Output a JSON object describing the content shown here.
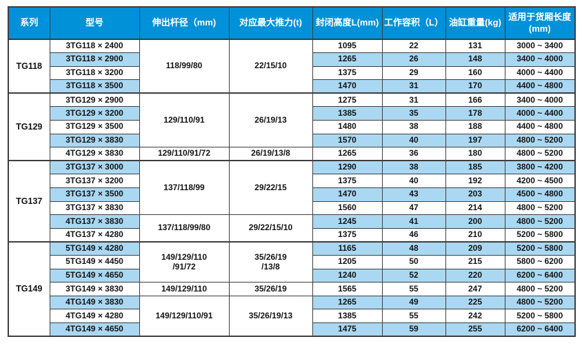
{
  "colors": {
    "header_bg": "#0091d8",
    "stripe_bg": "#aad8f2",
    "border": "#3d3d3d",
    "header_text": "#ffffff",
    "cell_text": "#141414"
  },
  "table": {
    "headers": [
      "系列",
      "型号",
      "伸出杆径（mm)",
      "对应最大推力(t)",
      "封闭高度L(mm)",
      "工作容积（L）",
      "油缸重量(kg)",
      "适用于货厢长度\n(mm)"
    ],
    "sections": [
      {
        "series": "TG118",
        "rows": [
          {
            "model": "3TG118 × 2400",
            "rod": "118/99/80",
            "thrust": "22/15/10",
            "rod_span": 4,
            "height": "1095",
            "volume": "22",
            "weight": "131",
            "range": "3000 ~ 3400"
          },
          {
            "model": "3TG118 × 2900",
            "height": "1265",
            "volume": "26",
            "weight": "148",
            "range": "3400 ~ 4000"
          },
          {
            "model": "3TG118 × 3200",
            "height": "1375",
            "volume": "29",
            "weight": "160",
            "range": "4000 ~ 4400"
          },
          {
            "model": "3TG118 × 3500",
            "height": "1470",
            "volume": "31",
            "weight": "170",
            "range": "4400 ~ 4800"
          }
        ]
      },
      {
        "series": "TG129",
        "rows": [
          {
            "model": "3TG129 × 2900",
            "rod": "129/110/91",
            "thrust": "26/19/13",
            "rod_span": 4,
            "height": "1275",
            "volume": "31",
            "weight": "166",
            "range": "3400 ~ 4000"
          },
          {
            "model": "3TG129 × 3200",
            "height": "1385",
            "volume": "35",
            "weight": "178",
            "range": "4000 ~ 4400"
          },
          {
            "model": "3TG129 × 3500",
            "height": "1480",
            "volume": "38",
            "weight": "188",
            "range": "4400 ~ 4800"
          },
          {
            "model": "3TG129 × 3830",
            "height": "1570",
            "volume": "40",
            "weight": "197",
            "range": "4800 ~ 5200"
          },
          {
            "model": "4TG129 × 3830",
            "rod": "129/110/91/72",
            "thrust": "26/19/13/8",
            "rod_span": 1,
            "height": "1265",
            "volume": "36",
            "weight": "180",
            "range": "4800 ~ 5200"
          }
        ]
      },
      {
        "series": "TG137",
        "rows": [
          {
            "model": "3TG137 × 3000",
            "rod": "137/118/99",
            "thrust": "29/22/15",
            "rod_span": 4,
            "height": "1290",
            "volume": "38",
            "weight": "185",
            "range": "3800 ~ 4200"
          },
          {
            "model": "3TG137 × 3200",
            "height": "1375",
            "volume": "40",
            "weight": "192",
            "range": "4200 ~ 4500"
          },
          {
            "model": "3TG137 × 3500",
            "height": "1470",
            "volume": "43",
            "weight": "203",
            "range": "4500 ~ 4800"
          },
          {
            "model": "3TG137 × 3830",
            "height": "1560",
            "volume": "47",
            "weight": "214",
            "range": "4800 ~ 5200"
          },
          {
            "model": "4TG137 × 3830",
            "rod": "137/118/99/80",
            "thrust": "29/22/15/10",
            "rod_span": 2,
            "height": "1245",
            "volume": "41",
            "weight": "200",
            "range": "4800 ~ 5200"
          },
          {
            "model": "4TG137 × 4280",
            "height": "1375",
            "volume": "46",
            "weight": "210",
            "range": "5200 ~ 5800"
          }
        ]
      },
      {
        "series": "TG149",
        "rows": [
          {
            "model": "5TG149 × 4280",
            "rod": "149/129/110\n/91/72",
            "thrust": "35/26/19\n/13/8",
            "rod_span": 3,
            "height": "1165",
            "volume": "48",
            "weight": "209",
            "range": "5200 ~ 5800"
          },
          {
            "model": "5TG149 × 4450",
            "height": "1205",
            "volume": "50",
            "weight": "215",
            "range": "5800 ~ 6200"
          },
          {
            "model": "5TG149 × 4650",
            "height": "1240",
            "volume": "52",
            "weight": "220",
            "range": "6200 ~ 6400"
          },
          {
            "model": "3TG149 × 3830",
            "rod": "149/129/110",
            "thrust": "35/26/19",
            "rod_span": 1,
            "height": "1565",
            "volume": "55",
            "weight": "247",
            "range": "4800 ~ 5200"
          },
          {
            "model": "4TG149 × 3830",
            "rod": "149/129/110/91",
            "thrust": "35/26/19/13",
            "rod_span": 3,
            "height": "1265",
            "volume": "49",
            "weight": "225",
            "range": "4800 ~ 5200"
          },
          {
            "model": "4TG149 × 4280",
            "height": "1385",
            "volume": "55",
            "weight": "242",
            "range": "5200 ~ 5800"
          },
          {
            "model": "4TG149 × 4650",
            "height": "1475",
            "volume": "59",
            "weight": "255",
            "range": "6200 ~ 6400"
          }
        ]
      }
    ]
  }
}
